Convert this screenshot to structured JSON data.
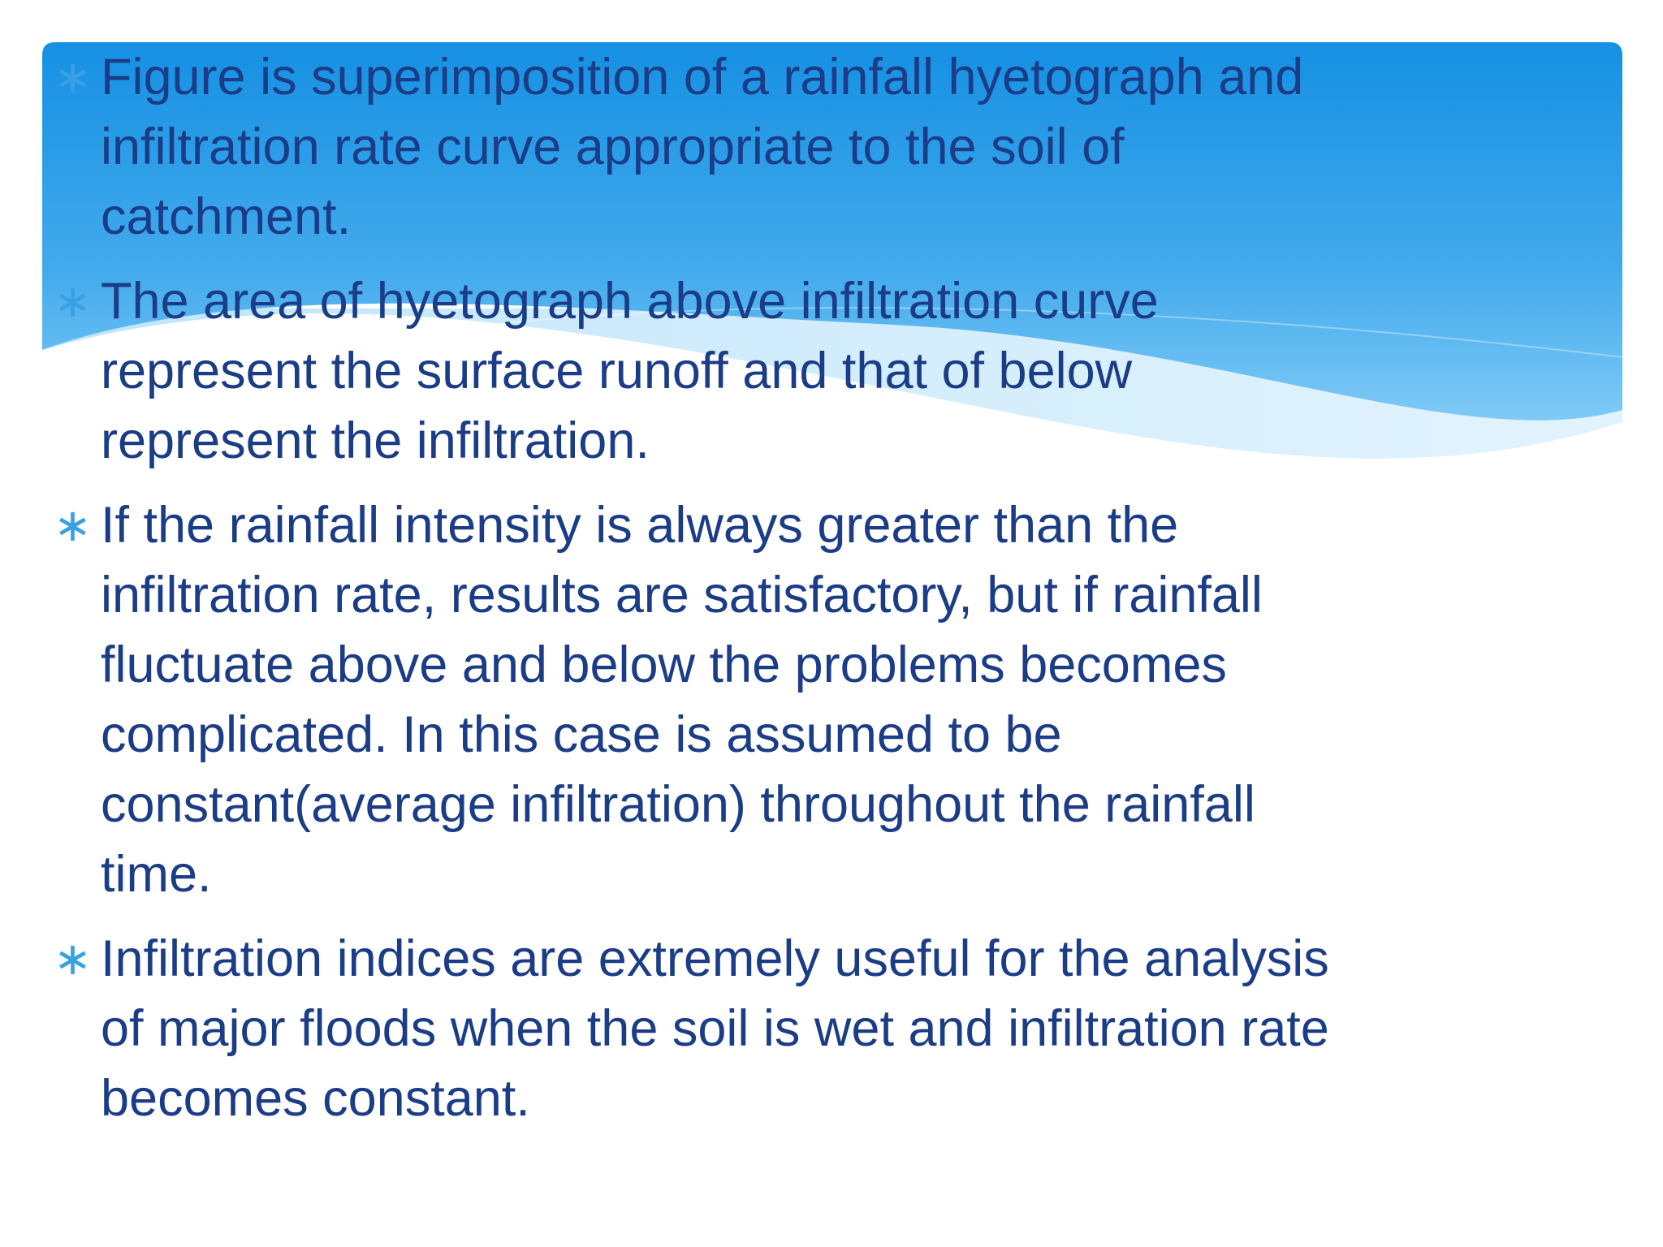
{
  "bullets": [
    {
      "lines": [
        "Figure is superimposition of a rainfall hyetograph and",
        "infiltration rate curve appropriate to the soil of",
        "catchment."
      ]
    },
    {
      "lines": [
        "The area of hyetograph above infiltration curve",
        "represent the surface runoff and that of below",
        "represent the infiltration."
      ]
    },
    {
      "lines": [
        "If the rainfall intensity is always greater than the",
        "infiltration rate, results are satisfactory, but if rainfall",
        "fluctuate above and below the problems becomes",
        "complicated. In this case is assumed to be",
        "constant(average infiltration) throughout the rainfall",
        "time."
      ]
    },
    {
      "lines": [
        "Infiltration indices are extremely useful for the analysis",
        "of major floods when the soil is wet and infiltration rate",
        "becomes constant."
      ]
    }
  ]
}
